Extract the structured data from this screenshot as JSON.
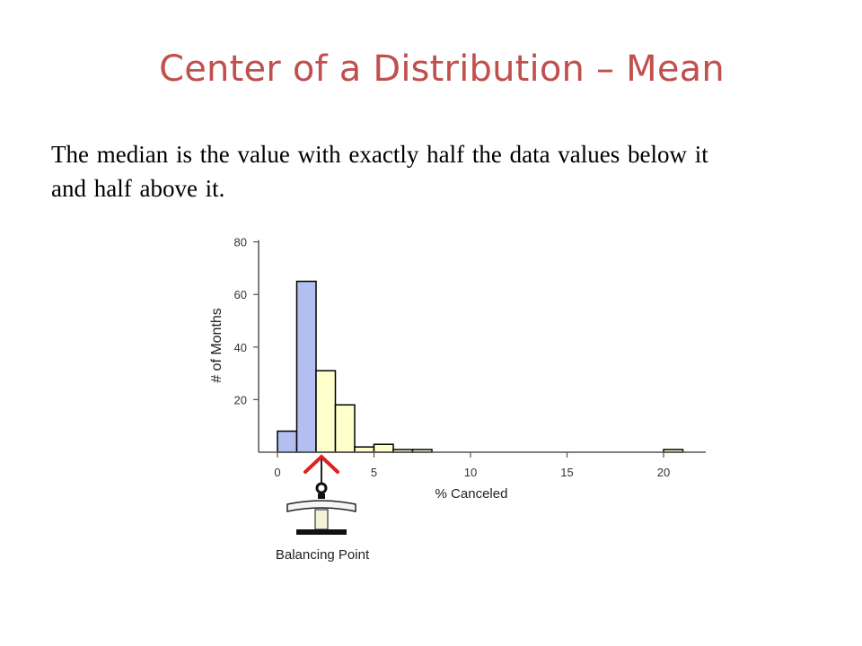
{
  "slide": {
    "title": "Center of a Distribution – Mean",
    "body": "The median is the value with exactly half the data values below it and half above it."
  },
  "chart_data": {
    "type": "bar",
    "title": "",
    "xlabel": "% Canceled",
    "ylabel": "# of Months",
    "xlim": [
      -1,
      22
    ],
    "ylim": [
      0,
      80
    ],
    "x_ticks": [
      0,
      5,
      10,
      15,
      20
    ],
    "y_ticks": [
      20,
      40,
      60,
      80
    ],
    "bin_width": 1,
    "bins": [
      {
        "start": 0,
        "end": 1,
        "count": 8,
        "group": "below"
      },
      {
        "start": 1,
        "end": 2,
        "count": 65,
        "group": "below"
      },
      {
        "start": 2,
        "end": 3,
        "count": 31,
        "group": "above"
      },
      {
        "start": 3,
        "end": 4,
        "count": 18,
        "group": "above"
      },
      {
        "start": 4,
        "end": 5,
        "count": 2,
        "group": "above"
      },
      {
        "start": 5,
        "end": 6,
        "count": 3,
        "group": "above"
      },
      {
        "start": 6,
        "end": 7,
        "count": 1,
        "group": "above"
      },
      {
        "start": 7,
        "end": 8,
        "count": 1,
        "group": "above"
      },
      {
        "start": 20,
        "end": 21,
        "count": 1,
        "group": "above"
      }
    ],
    "colors": {
      "below": "#b3bff0",
      "above": "#ffffcc",
      "outline": "#000000",
      "marker": "#e0201f"
    },
    "balance_point": {
      "x": 2.0,
      "label": "Balancing Point"
    },
    "grid": false,
    "legend": "none"
  }
}
